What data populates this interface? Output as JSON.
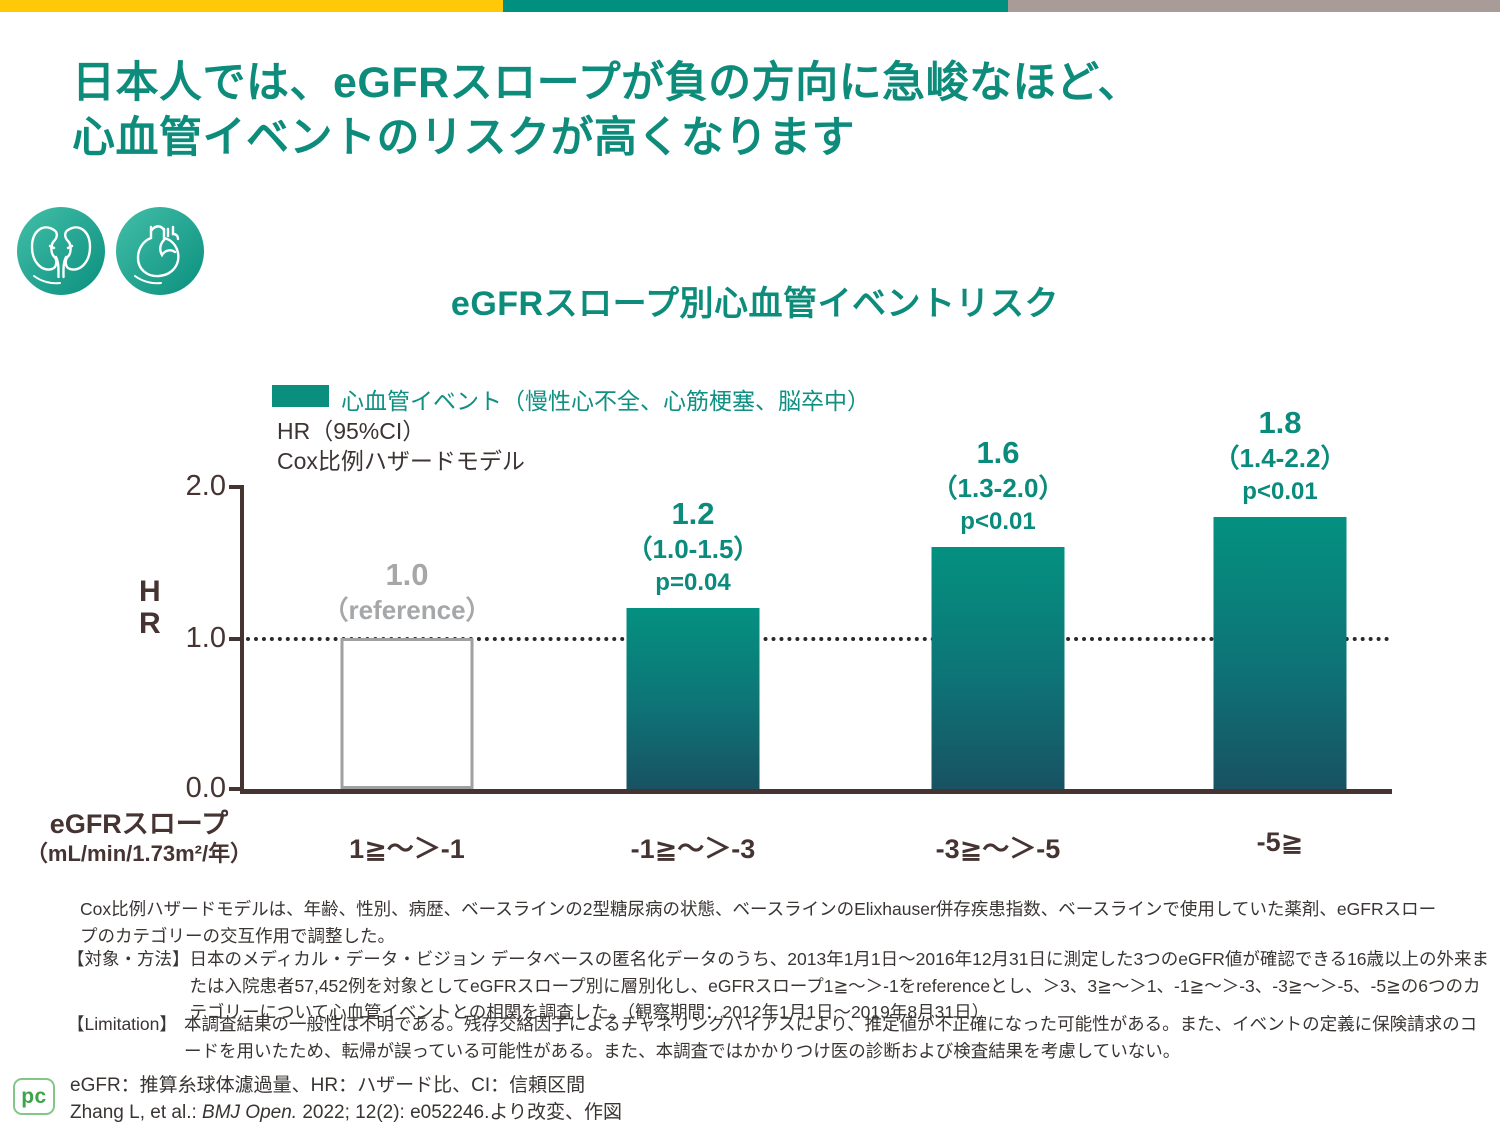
{
  "page": {
    "title_lines": [
      "日本人では、eGFRスロープが負の方向に急峻なほど、",
      "心血管イベントのリスクが高くなります"
    ],
    "title_color": "#0D8C7C"
  },
  "colors": {
    "topbar_yellow": "#FFC907",
    "topbar_teal": "#00907F",
    "topbar_gray": "#A99B97",
    "accent_teal": "#0D8C7C",
    "bar_gradient_top": "#049180",
    "bar_gradient_bottom": "#185263",
    "reference_bar_border": "#9EA0A2",
    "reference_label_gray": "#A5A7A9",
    "axis_brown": "#453431",
    "logo_green": "#3BA54A"
  },
  "chart_data": {
    "type": "bar",
    "title": "eGFRスロープ別心血管イベントリスク",
    "legend": "心血管イベント（慢性心不全、心筋梗塞、脳卒中）",
    "subtitle_line1": "HR（95%CI）",
    "subtitle_line2": "Cox比例ハザードモデル",
    "ylabel_line1": "H",
    "ylabel_line2": "R",
    "yticks": {
      "t20": "2.0",
      "t10": "1.0",
      "t00": "0.0"
    },
    "ylim": [
      0,
      2.0
    ],
    "reference_line": 1.0,
    "grid": "off",
    "legend_position": "top-left",
    "xlabel_title": "eGFRスロープ",
    "xlabel_unit": "（mL/min/1.73m²/年）",
    "categories": [
      "1≧〜＞-1",
      "-1≧〜＞-3",
      "-3≧〜＞-5",
      "-5≧"
    ],
    "bars": [
      {
        "category": "1≧〜＞-1",
        "value": 1.0,
        "hr_label": "1.0",
        "ci_label": "（reference）",
        "p_label": "",
        "style": "reference"
      },
      {
        "category": "-1≧〜＞-3",
        "value": 1.2,
        "hr_label": "1.2",
        "ci_label": "（1.0-1.5）",
        "p_label": "p=0.04",
        "style": "filled"
      },
      {
        "category": "-3≧〜＞-5",
        "value": 1.6,
        "hr_label": "1.6",
        "ci_label": "（1.3-2.0）",
        "p_label": "p<0.01",
        "style": "filled"
      },
      {
        "category": "-5≧",
        "value": 1.8,
        "hr_label": "1.8",
        "ci_label": "（1.4-2.2）",
        "p_label": "p<0.01",
        "style": "filled"
      }
    ]
  },
  "footnotes": {
    "adjustment": "Cox比例ハザードモデルは、年齢、性別、病歴、ベースラインの2型糖尿病の状態、ベースラインのElixhauser併存疾患指数、ベースラインで使用していた薬剤、eGFRスロープのカテゴリーの交互作用で調整した。",
    "methods_label": "【対象・方法】",
    "methods_text": "日本のメディカル・データ・ビジョン データベースの匿名化データのうち、2013年1月1日～2016年12月31日に測定した3つのeGFR値が確認できる16歳以上の外来または入院患者57,452例を対象としてeGFRスロープ別に層別化し、eGFRスロープ1≧〜＞-1をreferenceとし、＞3、3≧〜＞1、-1≧〜＞-3、-3≧〜＞-5、-5≧の6つのカテゴリーについて心血管イベントとの相関を調査した。（観察期間：2012年1月1日～2019年8月31日）",
    "limitation_label": "【Limitation】",
    "limitation_text": "本調査結果の一般性は不明である。残存交絡因子によるチャネリングバイアスにより、推定値が不正確になった可能性がある。また、イベントの定義に保険請求のコードを用いたため、転帰が誤っている可能性がある。また、本調査ではかかりつけ医の診断および検査結果を考慮していない。"
  },
  "footer": {
    "abbreviations": "eGFR：推算糸球体濾過量、HR：ハザード比、CI：信頼区間",
    "citation_pre": "Zhang L, et al.: ",
    "citation_italic": "BMJ Open.",
    "citation_post": " 2022; 12(2): e052246.より改変、作図",
    "logo_text": "pc"
  }
}
